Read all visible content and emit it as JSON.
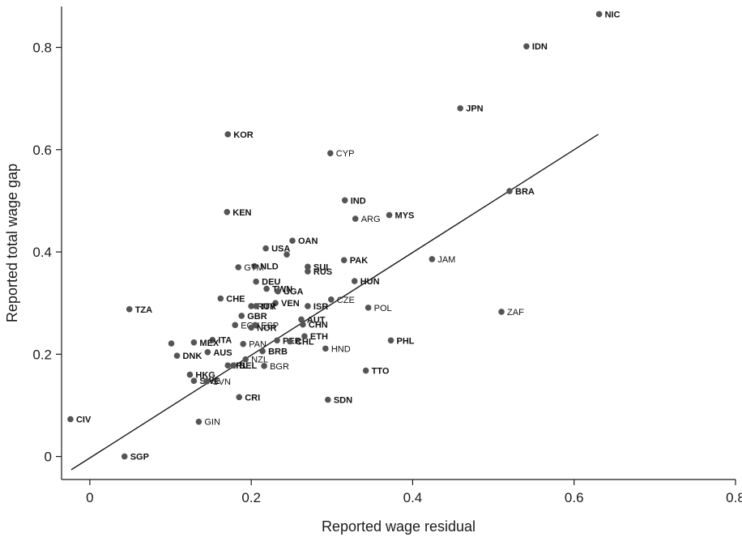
{
  "chart_data": {
    "type": "scatter",
    "xlabel": "Reported wage residual",
    "ylabel": "Reported total wage gap",
    "xlim": [
      -0.035,
      0.8
    ],
    "ylim": [
      -0.045,
      0.88
    ],
    "xticks": [
      0,
      0.2,
      0.4,
      0.6,
      0.8
    ],
    "xtick_labels": [
      "0",
      "0.2",
      "0.4",
      "0.6",
      "0.8"
    ],
    "yticks": [
      0,
      0.2,
      0.4,
      0.6,
      0.8
    ],
    "ytick_labels": [
      "0",
      "0.2",
      "0.4",
      "0.6",
      "0.8"
    ],
    "grid": false,
    "marker_color": "#555555",
    "line_color": "#1a1a1a",
    "fit_line": {
      "x": [
        -0.023,
        0.63
      ],
      "y": [
        -0.026,
        0.63
      ]
    },
    "points": [
      {
        "label": "NIC",
        "x": 0.631,
        "y": 0.865,
        "bold": true
      },
      {
        "label": "IDN",
        "x": 0.541,
        "y": 0.802,
        "bold": true
      },
      {
        "label": "JPN",
        "x": 0.459,
        "y": 0.681,
        "bold": true
      },
      {
        "label": "KOR",
        "x": 0.171,
        "y": 0.63,
        "bold": true
      },
      {
        "label": "CYP",
        "x": 0.298,
        "y": 0.593,
        "bold": false
      },
      {
        "label": "BRA",
        "x": 0.52,
        "y": 0.519,
        "bold": true
      },
      {
        "label": "IND",
        "x": 0.316,
        "y": 0.501,
        "bold": true
      },
      {
        "label": "KEN",
        "x": 0.17,
        "y": 0.478,
        "bold": true
      },
      {
        "label": "MYS",
        "x": 0.371,
        "y": 0.472,
        "bold": true
      },
      {
        "label": "ARG",
        "x": 0.329,
        "y": 0.465,
        "bold": false
      },
      {
        "label": "OAN",
        "x": 0.251,
        "y": 0.422,
        "bold": true
      },
      {
        "label": "USA",
        "x": 0.218,
        "y": 0.407,
        "bold": true
      },
      {
        "label": "",
        "x": 0.244,
        "y": 0.395,
        "bold": false
      },
      {
        "label": "PAK",
        "x": 0.315,
        "y": 0.384,
        "bold": true
      },
      {
        "label": "JAM",
        "x": 0.424,
        "y": 0.386,
        "bold": false
      },
      {
        "label": "NLD",
        "x": 0.204,
        "y": 0.372,
        "bold": true
      },
      {
        "label": "GTM",
        "x": 0.184,
        "y": 0.37,
        "bold": false
      },
      {
        "label": "SUI",
        "x": 0.27,
        "y": 0.371,
        "bold": true
      },
      {
        "label": "RUS",
        "x": 0.27,
        "y": 0.362,
        "bold": true
      },
      {
        "label": "DEU",
        "x": 0.206,
        "y": 0.342,
        "bold": true
      },
      {
        "label": "HUN",
        "x": 0.328,
        "y": 0.343,
        "bold": true
      },
      {
        "label": "TWN",
        "x": 0.219,
        "y": 0.328,
        "bold": true
      },
      {
        "label": "UGA",
        "x": 0.233,
        "y": 0.323,
        "bold": true
      },
      {
        "label": "CHE",
        "x": 0.162,
        "y": 0.309,
        "bold": true
      },
      {
        "label": "CZE",
        "x": 0.299,
        "y": 0.307,
        "bold": false
      },
      {
        "label": "VEN",
        "x": 0.23,
        "y": 0.3,
        "bold": true
      },
      {
        "label": "RUR",
        "x": 0.2,
        "y": 0.294,
        "bold": true
      },
      {
        "label": "ITY",
        "x": 0.206,
        "y": 0.294,
        "bold": true
      },
      {
        "label": "ISR",
        "x": 0.27,
        "y": 0.294,
        "bold": true
      },
      {
        "label": "POL",
        "x": 0.345,
        "y": 0.291,
        "bold": false
      },
      {
        "label": "TZA",
        "x": 0.049,
        "y": 0.288,
        "bold": true
      },
      {
        "label": "ZAF",
        "x": 0.51,
        "y": 0.283,
        "bold": false
      },
      {
        "label": "GBR",
        "x": 0.188,
        "y": 0.275,
        "bold": true
      },
      {
        "label": "AUT",
        "x": 0.262,
        "y": 0.268,
        "bold": true
      },
      {
        "label": "CHN",
        "x": 0.264,
        "y": 0.258,
        "bold": true
      },
      {
        "label": "ECU",
        "x": 0.18,
        "y": 0.257,
        "bold": false
      },
      {
        "label": "ESP",
        "x": 0.205,
        "y": 0.257,
        "bold": false
      },
      {
        "label": "NOR",
        "x": 0.2,
        "y": 0.252,
        "bold": true
      },
      {
        "label": "ETH",
        "x": 0.266,
        "y": 0.235,
        "bold": true
      },
      {
        "label": "PER",
        "x": 0.232,
        "y": 0.227,
        "bold": true
      },
      {
        "label": "CHL",
        "x": 0.248,
        "y": 0.225,
        "bold": true
      },
      {
        "label": "PHL",
        "x": 0.373,
        "y": 0.227,
        "bold": true
      },
      {
        "label": "ITA",
        "x": 0.152,
        "y": 0.228,
        "bold": true
      },
      {
        "label": "MEX",
        "x": 0.129,
        "y": 0.223,
        "bold": true
      },
      {
        "label": "",
        "x": 0.101,
        "y": 0.221,
        "bold": false
      },
      {
        "label": "PAN",
        "x": 0.19,
        "y": 0.22,
        "bold": false
      },
      {
        "label": "HND",
        "x": 0.292,
        "y": 0.211,
        "bold": false
      },
      {
        "label": "AUS",
        "x": 0.146,
        "y": 0.204,
        "bold": true
      },
      {
        "label": "BRB",
        "x": 0.214,
        "y": 0.206,
        "bold": true
      },
      {
        "label": "DNK",
        "x": 0.108,
        "y": 0.197,
        "bold": true
      },
      {
        "label": "NZL",
        "x": 0.193,
        "y": 0.19,
        "bold": false
      },
      {
        "label": "IRL",
        "x": 0.171,
        "y": 0.178,
        "bold": true
      },
      {
        "label": "BEL",
        "x": 0.178,
        "y": 0.178,
        "bold": true
      },
      {
        "label": "BGR",
        "x": 0.216,
        "y": 0.177,
        "bold": false
      },
      {
        "label": "TTO",
        "x": 0.342,
        "y": 0.168,
        "bold": true
      },
      {
        "label": "HKG",
        "x": 0.124,
        "y": 0.16,
        "bold": true
      },
      {
        "label": "SWE",
        "x": 0.129,
        "y": 0.148,
        "bold": true
      },
      {
        "label": "SVN",
        "x": 0.145,
        "y": 0.147,
        "bold": false
      },
      {
        "label": "CRI",
        "x": 0.185,
        "y": 0.116,
        "bold": true
      },
      {
        "label": "SDN",
        "x": 0.295,
        "y": 0.111,
        "bold": true
      },
      {
        "label": "CIV",
        "x": -0.024,
        "y": 0.073,
        "bold": true
      },
      {
        "label": "GIN",
        "x": 0.135,
        "y": 0.068,
        "bold": false
      },
      {
        "label": "SGP",
        "x": 0.043,
        "y": 0.0,
        "bold": true
      }
    ]
  }
}
